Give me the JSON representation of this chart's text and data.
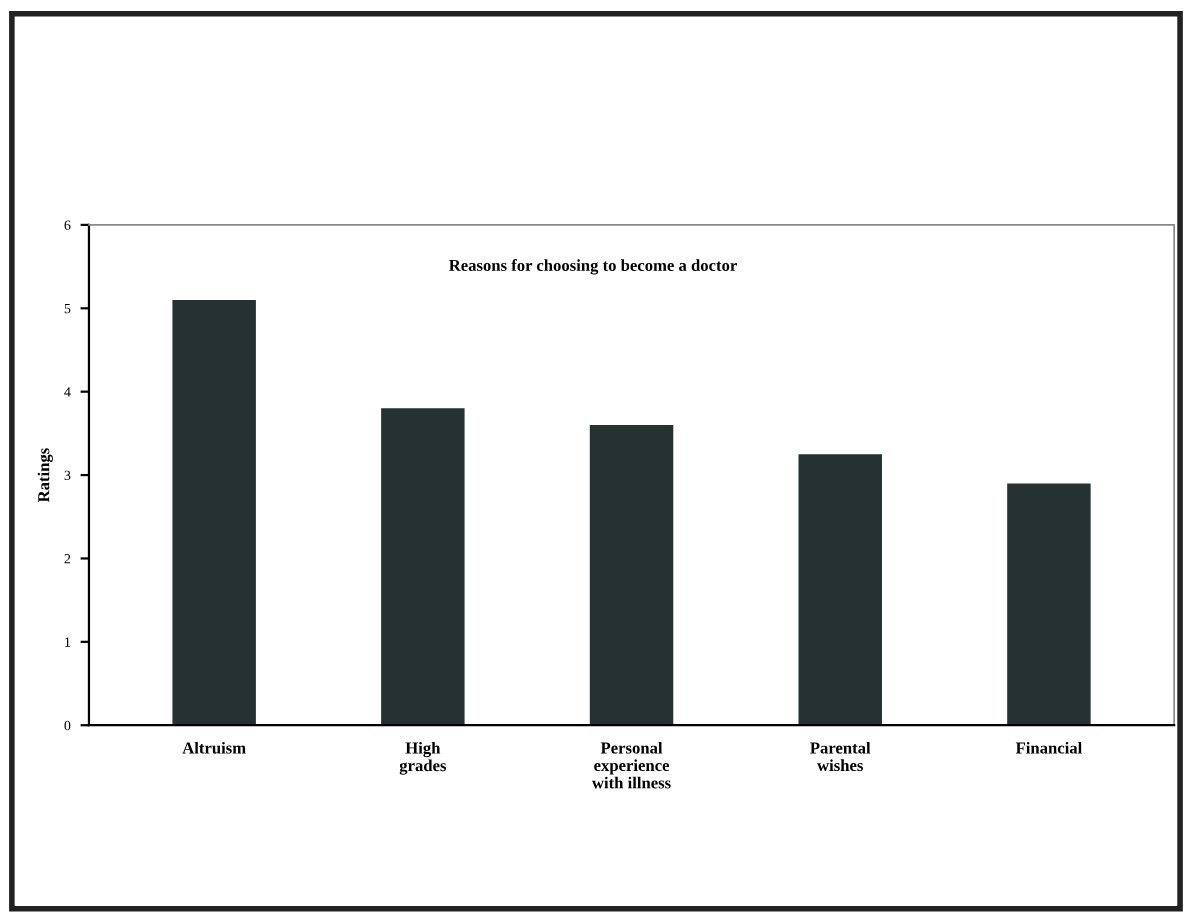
{
  "chart_data": {
    "type": "bar",
    "title": "Reasons for choosing to become a doctor",
    "ylabel": "Ratings",
    "categories": [
      "Altruism",
      "High\ngrades",
      "Personal\nexperience\nwith illness",
      "Parental\nwishes",
      "Financial"
    ],
    "values": [
      5.1,
      3.8,
      3.6,
      3.25,
      2.9
    ],
    "color": "#263232",
    "ylim": [
      0,
      6
    ],
    "yticks": [
      0,
      1,
      2,
      3,
      4,
      5,
      6
    ],
    "grid": false
  }
}
